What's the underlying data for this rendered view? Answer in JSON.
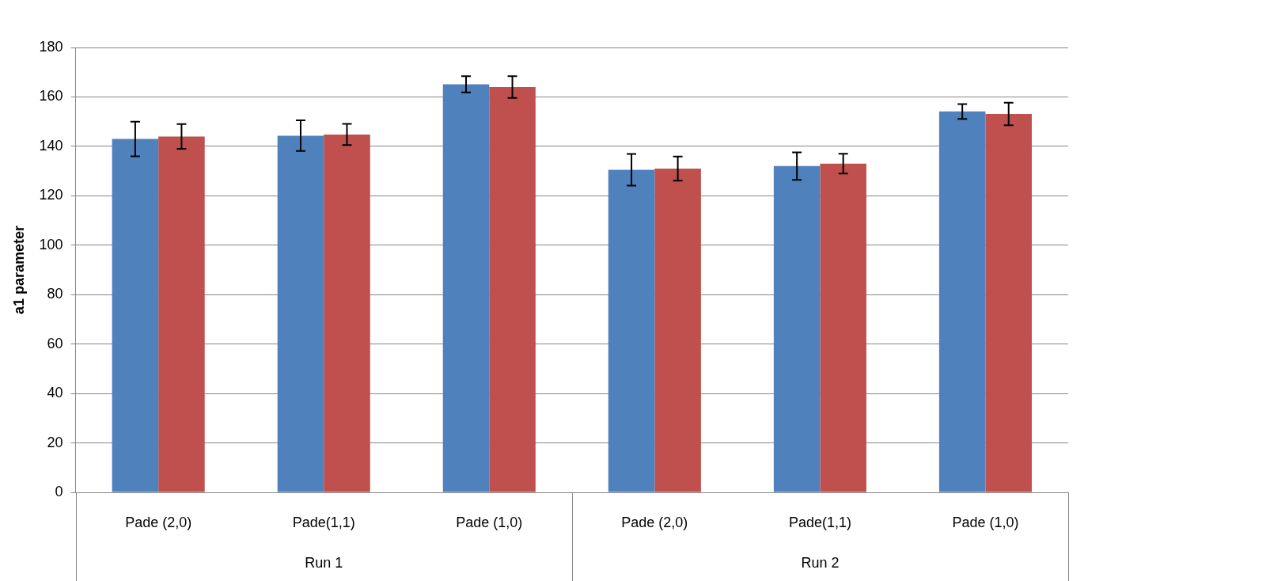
{
  "chart_data": {
    "type": "bar",
    "ylabel": "a1 parameter",
    "categories": [
      "Pade (2,0)",
      "Pade(1,1)",
      "Pade (1,0)",
      "Pade (2,0)",
      "Pade(1,1)",
      "Pade (1,0)"
    ],
    "series": [
      {
        "color": "#4f81bd",
        "values": [
          143,
          144.3,
          165.1,
          130.5,
          132,
          154.1
        ],
        "errors": [
          7,
          6.2,
          3.3,
          6.4,
          5.6,
          3
        ]
      },
      {
        "color": "#c0504d",
        "values": [
          144,
          144.8,
          164,
          131,
          133,
          153.1
        ],
        "errors": [
          5,
          4.3,
          4.4,
          4.9,
          4,
          4.6
        ]
      }
    ],
    "annotations": [
      "Run 1",
      "Run 2"
    ],
    "ylim": [
      0,
      180
    ],
    "yticks": [
      0,
      20,
      40,
      60,
      80,
      100,
      120,
      140,
      160,
      180
    ],
    "grid": "y"
  }
}
